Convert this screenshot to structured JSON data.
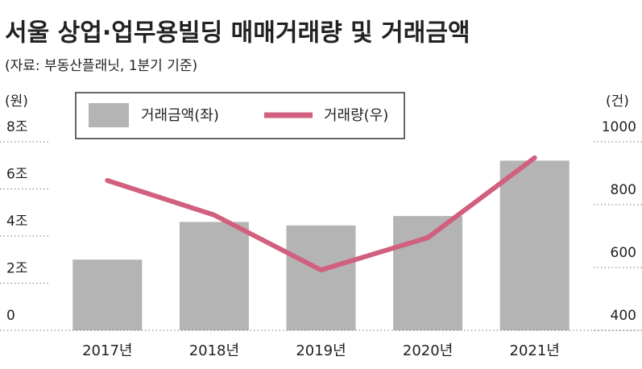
{
  "chart_data": {
    "type": "bar-line",
    "title": "서울 상업·업무용빌딩 매매거래량 및 거래금액",
    "subtitle": "(자료: 부동산플래닛, 1분기 기준)",
    "ylabel": "(원)",
    "y2label": "(건)",
    "categories": [
      "2017년",
      "2018년",
      "2019년",
      "2020년",
      "2021년"
    ],
    "series": [
      {
        "name": "거래금액(좌)",
        "type": "bar",
        "color": "#b4b4b4",
        "values": [
          3.0,
          4.6,
          4.45,
          4.85,
          7.2
        ]
      },
      {
        "name": "거래량(우)",
        "type": "line",
        "axis": "y2",
        "color": "#d1607f",
        "values": [
          877,
          767,
          592,
          695,
          949
        ]
      }
    ],
    "ylim": [
      0,
      8
    ],
    "yticks": [
      0,
      {
        "value": 2,
        "label": "2조"
      },
      {
        "value": 4,
        "label": "4조"
      },
      {
        "value": 6,
        "label": "6조"
      },
      {
        "value": 8,
        "label": "8조"
      }
    ],
    "y2lim": [
      400,
      1000
    ],
    "y2ticks": [
      400,
      600,
      800,
      1000
    ]
  }
}
